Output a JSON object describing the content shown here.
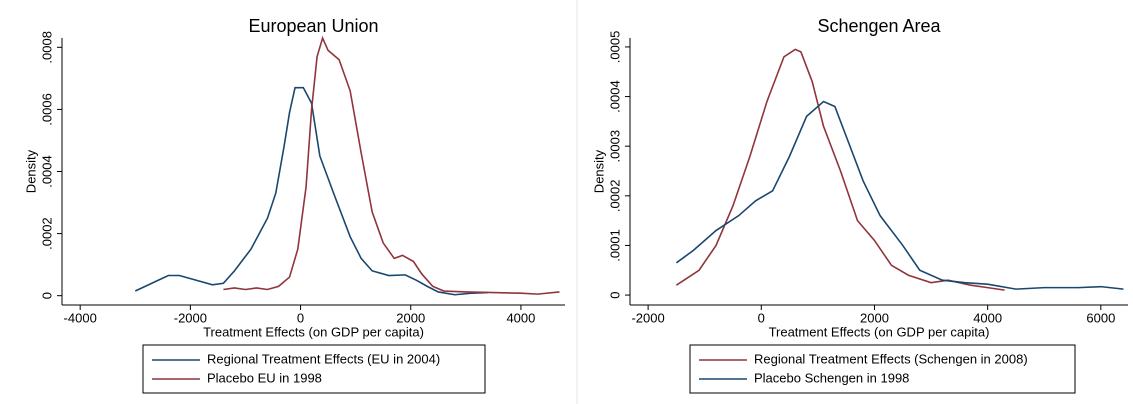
{
  "chart_data": [
    {
      "type": "line",
      "title": "European Union",
      "xlabel": "Treatment Effects (on GDP per capita)",
      "ylabel": "Density",
      "xlim": [
        -4330,
        4800
      ],
      "ylim": [
        -3e-05,
        0.00083
      ],
      "xticks": [
        -4000,
        -2000,
        0,
        2000,
        4000
      ],
      "yticks": [
        0,
        {
          "value": 0.0002,
          "label": ".0002"
        },
        {
          "value": 0.0004,
          "label": ".0004"
        },
        {
          "value": 0.0006,
          "label": ".0006"
        },
        {
          "value": 0.0008,
          "label": ".0008"
        }
      ],
      "legend": "bottom",
      "series": [
        {
          "name": "Regional Treatment Effects (EU in 2004)",
          "color": "#1a476f",
          "x": [
            -3000,
            -2700,
            -2400,
            -2200,
            -1900,
            -1600,
            -1400,
            -1200,
            -900,
            -600,
            -450,
            -300,
            -200,
            -100,
            50,
            200,
            350,
            600,
            900,
            1100,
            1300,
            1600,
            1900,
            2100,
            2300,
            2500,
            2800,
            3100,
            3400
          ],
          "values": [
            1.5e-05,
            4e-05,
            6.5e-05,
            6.5e-05,
            5e-05,
            3.5e-05,
            4e-05,
            8e-05,
            0.00015,
            0.00025,
            0.00033,
            0.00048,
            0.00059,
            0.00067,
            0.00067,
            0.00062,
            0.00045,
            0.00033,
            0.00019,
            0.00012,
            8e-05,
            6.5e-05,
            6.7e-05,
            5e-05,
            3e-05,
            1.2e-05,
            3e-06,
            8e-06,
            1e-05
          ]
        },
        {
          "name": "Placebo EU in 1998",
          "color": "#90353b",
          "x": [
            -1400,
            -1200,
            -1000,
            -800,
            -600,
            -400,
            -200,
            -50,
            100,
            200,
            300,
            400,
            500,
            700,
            900,
            1100,
            1300,
            1500,
            1700,
            1850,
            2050,
            2200,
            2400,
            2600,
            3000,
            3500,
            4000,
            4300,
            4700
          ],
          "values": [
            2e-05,
            2.5e-05,
            2e-05,
            2.5e-05,
            2e-05,
            3e-05,
            6e-05,
            0.00015,
            0.00035,
            0.0006,
            0.00077,
            0.00083,
            0.00079,
            0.00076,
            0.00066,
            0.00046,
            0.00027,
            0.00017,
            0.00012,
            0.00013,
            0.00011,
            7e-05,
            3e-05,
            1.5e-05,
            1.2e-05,
            1e-05,
            8e-06,
            5e-06,
            1.2e-05
          ]
        }
      ]
    },
    {
      "type": "line",
      "title": "Schengen Area",
      "xlabel": "Treatment Effects (on GDP per capita)",
      "ylabel": "Density",
      "xlim": [
        -2320,
        6480
      ],
      "ylim": [
        -2e-05,
        0.000518
      ],
      "xticks": [
        -2000,
        0,
        2000,
        4000,
        6000
      ],
      "yticks": [
        0,
        {
          "value": 0.0001,
          "label": ".0001"
        },
        {
          "value": 0.0002,
          "label": ".0002"
        },
        {
          "value": 0.0003,
          "label": ".0003"
        },
        {
          "value": 0.0004,
          "label": ".0004"
        },
        {
          "value": 0.0005,
          "label": ".0005"
        }
      ],
      "legend": "bottom",
      "series": [
        {
          "name": "Regional Treatment Effects (Schengen in 2008)",
          "color": "#90353b",
          "x": [
            -1500,
            -1100,
            -800,
            -500,
            -200,
            100,
            400,
            600,
            700,
            900,
            1100,
            1400,
            1700,
            2000,
            2300,
            2600,
            3000,
            3300,
            3700,
            4000,
            4300
          ],
          "values": [
            2e-05,
            5e-05,
            0.0001,
            0.00018,
            0.00028,
            0.00039,
            0.00048,
            0.000495,
            0.00049,
            0.00043,
            0.00034,
            0.00025,
            0.00015,
            0.00011,
            6e-05,
            4e-05,
            2.5e-05,
            3e-05,
            2e-05,
            1.5e-05,
            1e-05
          ]
        },
        {
          "name": "Placebo Schengen in 1998",
          "color": "#1a476f",
          "x": [
            -1500,
            -1200,
            -800,
            -400,
            -100,
            200,
            500,
            800,
            1100,
            1300,
            1500,
            1800,
            2100,
            2500,
            2800,
            3200,
            3600,
            4000,
            4500,
            5000,
            5600,
            6000,
            6400
          ],
          "values": [
            6.5e-05,
            9e-05,
            0.00013,
            0.00016,
            0.00019,
            0.00021,
            0.00028,
            0.00036,
            0.00039,
            0.00038,
            0.00032,
            0.00023,
            0.00016,
            0.0001,
            5e-05,
            3e-05,
            2.5e-05,
            2.2e-05,
            1.2e-05,
            1.5e-05,
            1.5e-05,
            1.7e-05,
            1.2e-05
          ]
        }
      ]
    }
  ]
}
